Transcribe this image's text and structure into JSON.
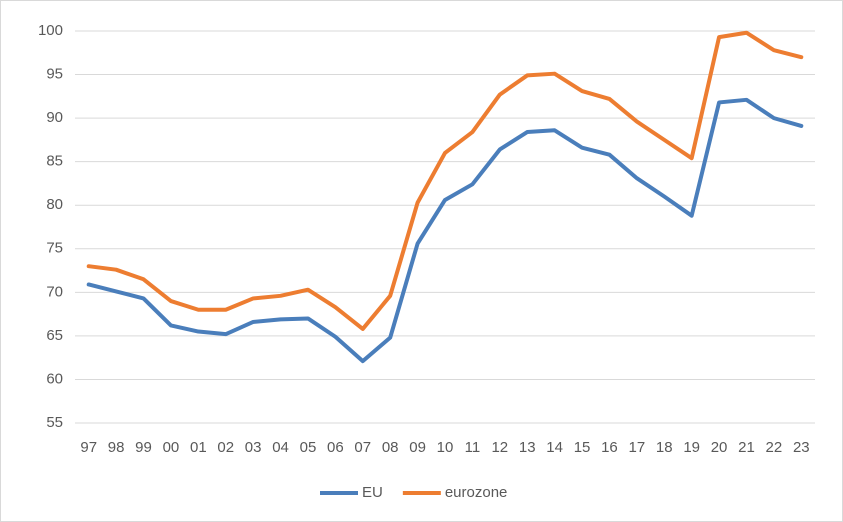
{
  "chart_data": {
    "type": "line",
    "categories": [
      "97",
      "98",
      "99",
      "00",
      "01",
      "02",
      "03",
      "04",
      "05",
      "06",
      "07",
      "08",
      "09",
      "10",
      "11",
      "12",
      "13",
      "14",
      "15",
      "16",
      "17",
      "18",
      "19",
      "20",
      "21",
      "22",
      "23"
    ],
    "series": [
      {
        "name": "EU",
        "color": "#4a7ebb",
        "values": [
          70.9,
          70.1,
          69.3,
          66.2,
          65.5,
          65.2,
          66.6,
          66.9,
          67.0,
          64.9,
          62.1,
          64.8,
          75.6,
          80.6,
          82.4,
          86.4,
          88.4,
          88.6,
          86.6,
          85.8,
          83.1,
          81.0,
          78.8,
          91.8,
          92.1,
          90.0,
          89.1
        ]
      },
      {
        "name": "eurozone",
        "color": "#ed7d31",
        "values": [
          73.0,
          72.6,
          71.5,
          69.0,
          68.0,
          68.0,
          69.3,
          69.6,
          70.3,
          68.3,
          65.8,
          69.6,
          80.3,
          86.0,
          88.4,
          92.7,
          94.9,
          95.1,
          93.1,
          92.2,
          89.6,
          87.5,
          85.4,
          99.3,
          99.8,
          97.8,
          97.0
        ]
      }
    ],
    "ylim": [
      55,
      100
    ],
    "yticks": [
      55,
      60,
      65,
      70,
      75,
      80,
      85,
      90,
      95,
      100
    ],
    "grid": true,
    "legend": "bottom"
  }
}
